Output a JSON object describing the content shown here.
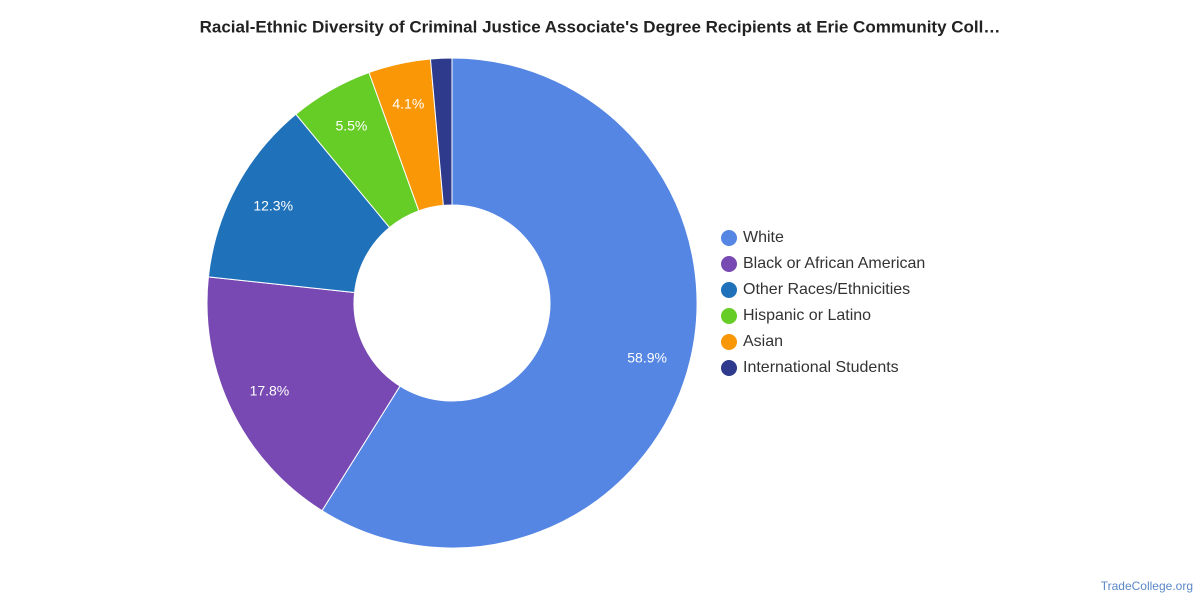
{
  "chart_data": {
    "type": "donut",
    "title": "Racial-Ethnic Diversity of Criminal Justice Associate's Degree Recipients at Erie Community Coll…",
    "categories": [
      "White",
      "Black or African American",
      "Other Races/Ethnicities",
      "Hispanic or Latino",
      "Asian",
      "International Students"
    ],
    "values": [
      58.9,
      17.8,
      12.3,
      5.5,
      4.1,
      1.4
    ],
    "value_labels": [
      "58.9%",
      "17.8%",
      "12.3%",
      "5.5%",
      "4.1%",
      null
    ],
    "colors": [
      "#5586e3",
      "#7849b3",
      "#1f72ba",
      "#66cc26",
      "#f99707",
      "#2e3a8c"
    ],
    "legend": "right"
  },
  "watermark": "TradeCollege.org"
}
